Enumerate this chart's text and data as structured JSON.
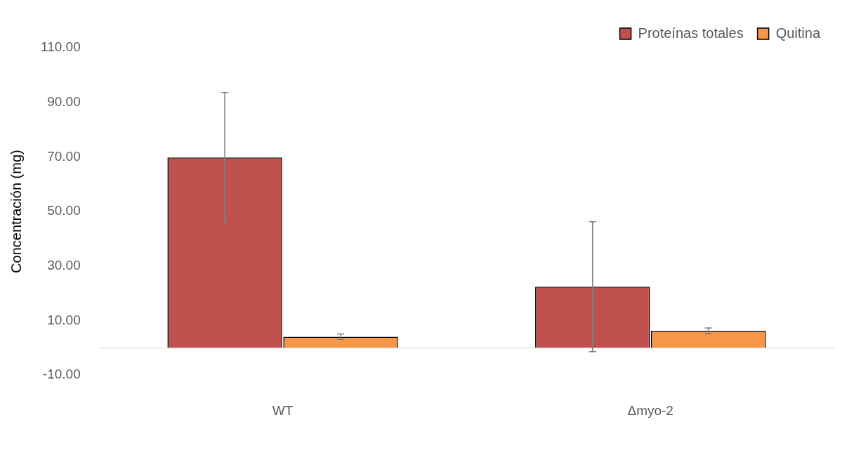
{
  "chart_data": {
    "type": "bar",
    "ylabel": "Concentración (mg)",
    "categories": [
      "WT",
      "Δmyo-2"
    ],
    "series": [
      {
        "name": "Proteínas totales",
        "color": "#c0504d",
        "values": [
          69.8,
          22.4
        ],
        "errors": [
          23.8,
          23.8
        ]
      },
      {
        "name": "Quitina",
        "color": "#f79646",
        "values": [
          4.1,
          6.3
        ],
        "errors": [
          1.0,
          1.0
        ]
      }
    ],
    "ylim": [
      -10,
      110
    ],
    "yticks": [
      {
        "value": -10,
        "label": "-10.00"
      },
      {
        "value": 10,
        "label": "10.00"
      },
      {
        "value": 30,
        "label": "30.00"
      },
      {
        "value": 50,
        "label": "50.00"
      },
      {
        "value": 70,
        "label": "70.00"
      },
      {
        "value": 90,
        "label": "90.00"
      },
      {
        "value": 110,
        "label": "110.00"
      }
    ],
    "ref_lines": [
      {
        "axis": "y",
        "value": 0,
        "color": "#d9d9d9"
      }
    ],
    "grid": false,
    "legend": "top right"
  }
}
